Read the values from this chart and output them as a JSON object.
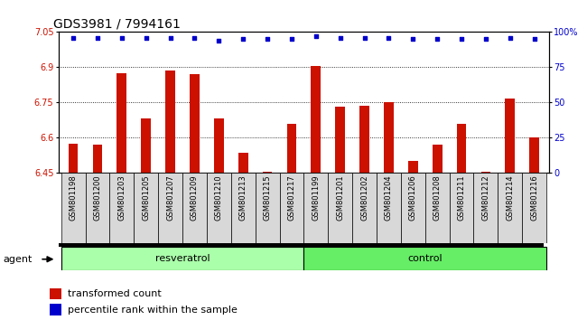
{
  "title": "GDS3981 / 7994161",
  "samples": [
    "GSM801198",
    "GSM801200",
    "GSM801203",
    "GSM801205",
    "GSM801207",
    "GSM801209",
    "GSM801210",
    "GSM801213",
    "GSM801215",
    "GSM801217",
    "GSM801199",
    "GSM801201",
    "GSM801202",
    "GSM801204",
    "GSM801206",
    "GSM801208",
    "GSM801211",
    "GSM801212",
    "GSM801214",
    "GSM801216"
  ],
  "bar_values": [
    6.575,
    6.57,
    6.875,
    6.68,
    6.885,
    6.87,
    6.68,
    6.535,
    6.455,
    6.66,
    6.905,
    6.73,
    6.735,
    6.75,
    6.5,
    6.57,
    6.66,
    6.455,
    6.765,
    6.6
  ],
  "percentile_values": [
    96,
    96,
    96,
    96,
    96,
    96,
    94,
    95,
    95,
    95,
    97,
    96,
    96,
    96,
    95,
    95,
    95,
    95,
    96,
    95
  ],
  "group_labels": [
    "resveratrol",
    "control"
  ],
  "group_sizes": [
    10,
    10
  ],
  "resveratrol_color": "#aaffaa",
  "control_color": "#66ee66",
  "bar_color": "#cc1100",
  "dot_color": "#0000cc",
  "ylim_left": [
    6.45,
    7.05
  ],
  "ylim_right": [
    0,
    100
  ],
  "yticks_left": [
    6.45,
    6.6,
    6.75,
    6.9,
    7.05
  ],
  "yticks_right": [
    0,
    25,
    50,
    75,
    100
  ],
  "ytick_labels_right": [
    "0",
    "25",
    "50",
    "75",
    "100%"
  ],
  "grid_values": [
    6.6,
    6.75,
    6.9
  ],
  "agent_label": "agent",
  "legend_bar_label": "transformed count",
  "legend_dot_label": "percentile rank within the sample",
  "title_fontsize": 10,
  "tick_fontsize": 7,
  "sample_fontsize": 6,
  "legend_fontsize": 8
}
